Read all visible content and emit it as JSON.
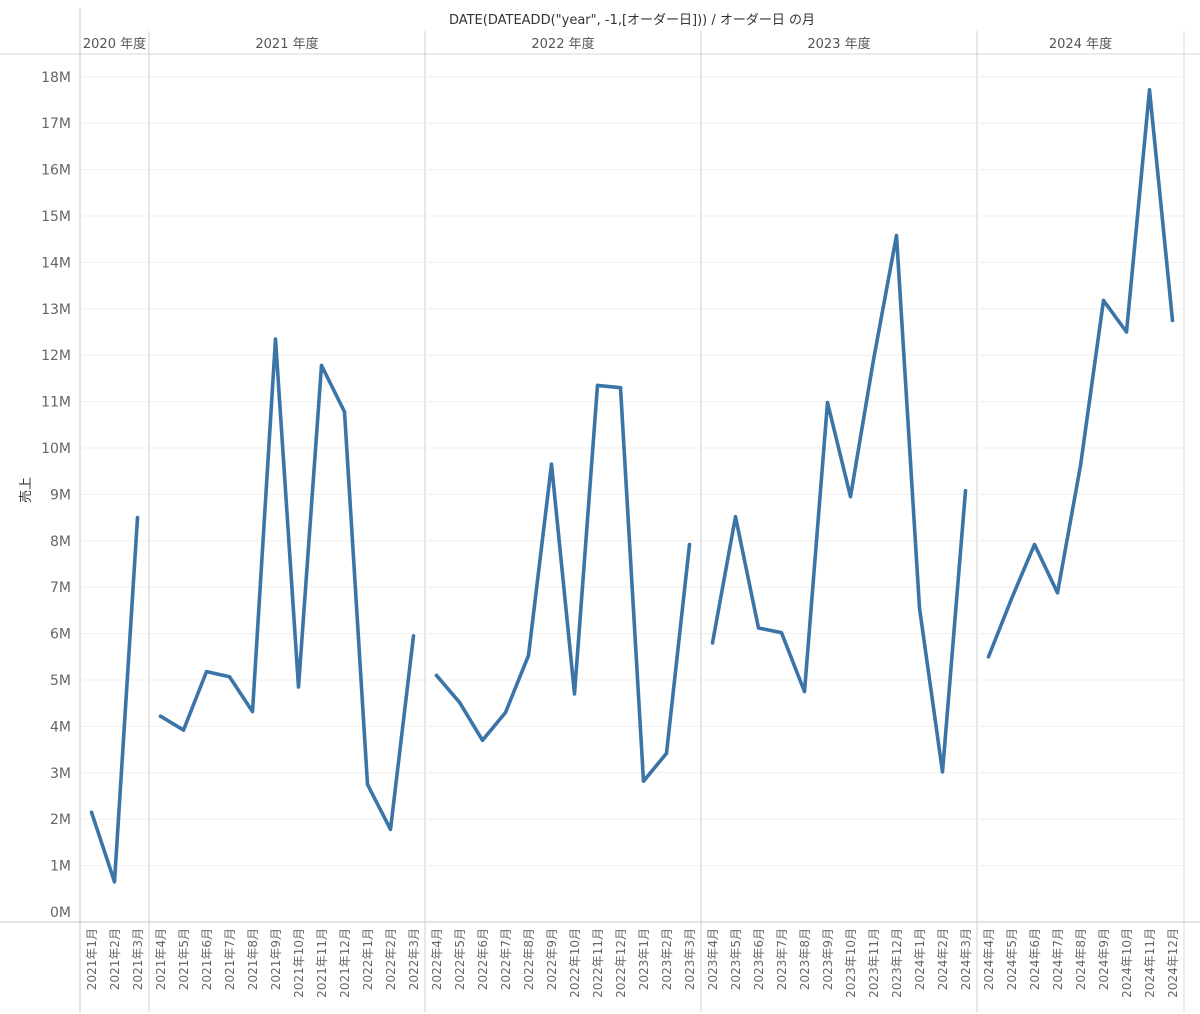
{
  "chart_data": {
    "type": "line",
    "title": "DATE(DATEADD(\"year\", -1,[オーダー日])) / オーダー日 の月",
    "ylabel": "売上",
    "xlabel": "",
    "ylim": [
      0,
      18.5
    ],
    "y_unit": "M",
    "y_ticks": [
      "0M",
      "1M",
      "2M",
      "3M",
      "4M",
      "5M",
      "6M",
      "7M",
      "8M",
      "9M",
      "10M",
      "11M",
      "12M",
      "13M",
      "14M",
      "15M",
      "16M",
      "17M",
      "18M"
    ],
    "grid": true,
    "line_color": "#3b75a7",
    "panels": [
      {
        "label": "2020 年度",
        "categories": [
          "2021年1月",
          "2021年2月",
          "2021年3月"
        ],
        "values": [
          2.15,
          0.65,
          8.5
        ]
      },
      {
        "label": "2021 年度",
        "categories": [
          "2021年4月",
          "2021年5月",
          "2021年6月",
          "2021年7月",
          "2021年8月",
          "2021年9月",
          "2021年10月",
          "2021年11月",
          "2021年12月",
          "2022年1月",
          "2022年2月",
          "2022年3月"
        ],
        "values": [
          4.22,
          3.92,
          5.18,
          5.07,
          4.32,
          12.35,
          4.85,
          11.78,
          10.78,
          2.75,
          1.78,
          5.95
        ]
      },
      {
        "label": "2022 年度",
        "categories": [
          "2022年4月",
          "2022年5月",
          "2022年6月",
          "2022年7月",
          "2022年8月",
          "2022年9月",
          "2022年10月",
          "2022年11月",
          "2022年12月",
          "2023年1月",
          "2023年2月",
          "2023年3月"
        ],
        "values": [
          5.1,
          4.52,
          3.7,
          4.3,
          5.53,
          9.65,
          4.7,
          11.35,
          11.3,
          2.82,
          3.42,
          7.92
        ]
      },
      {
        "label": "2023 年度",
        "categories": [
          "2023年4月",
          "2023年5月",
          "2023年6月",
          "2023年7月",
          "2023年8月",
          "2023年9月",
          "2023年10月",
          "2023年11月",
          "2023年12月",
          "2024年1月",
          "2024年2月",
          "2024年3月"
        ],
        "values": [
          5.8,
          8.52,
          6.12,
          6.02,
          4.75,
          10.98,
          8.95,
          11.9,
          14.58,
          6.55,
          3.02,
          9.08
        ]
      },
      {
        "label": "2024 年度",
        "categories": [
          "2024年4月",
          "2024年5月",
          "2024年6月",
          "2024年7月",
          "2024年8月",
          "2024年9月",
          "2024年10月",
          "2024年11月",
          "2024年12月"
        ],
        "values": [
          5.5,
          6.75,
          7.92,
          6.88,
          9.62,
          13.18,
          12.5,
          17.72,
          12.75
        ]
      }
    ]
  }
}
